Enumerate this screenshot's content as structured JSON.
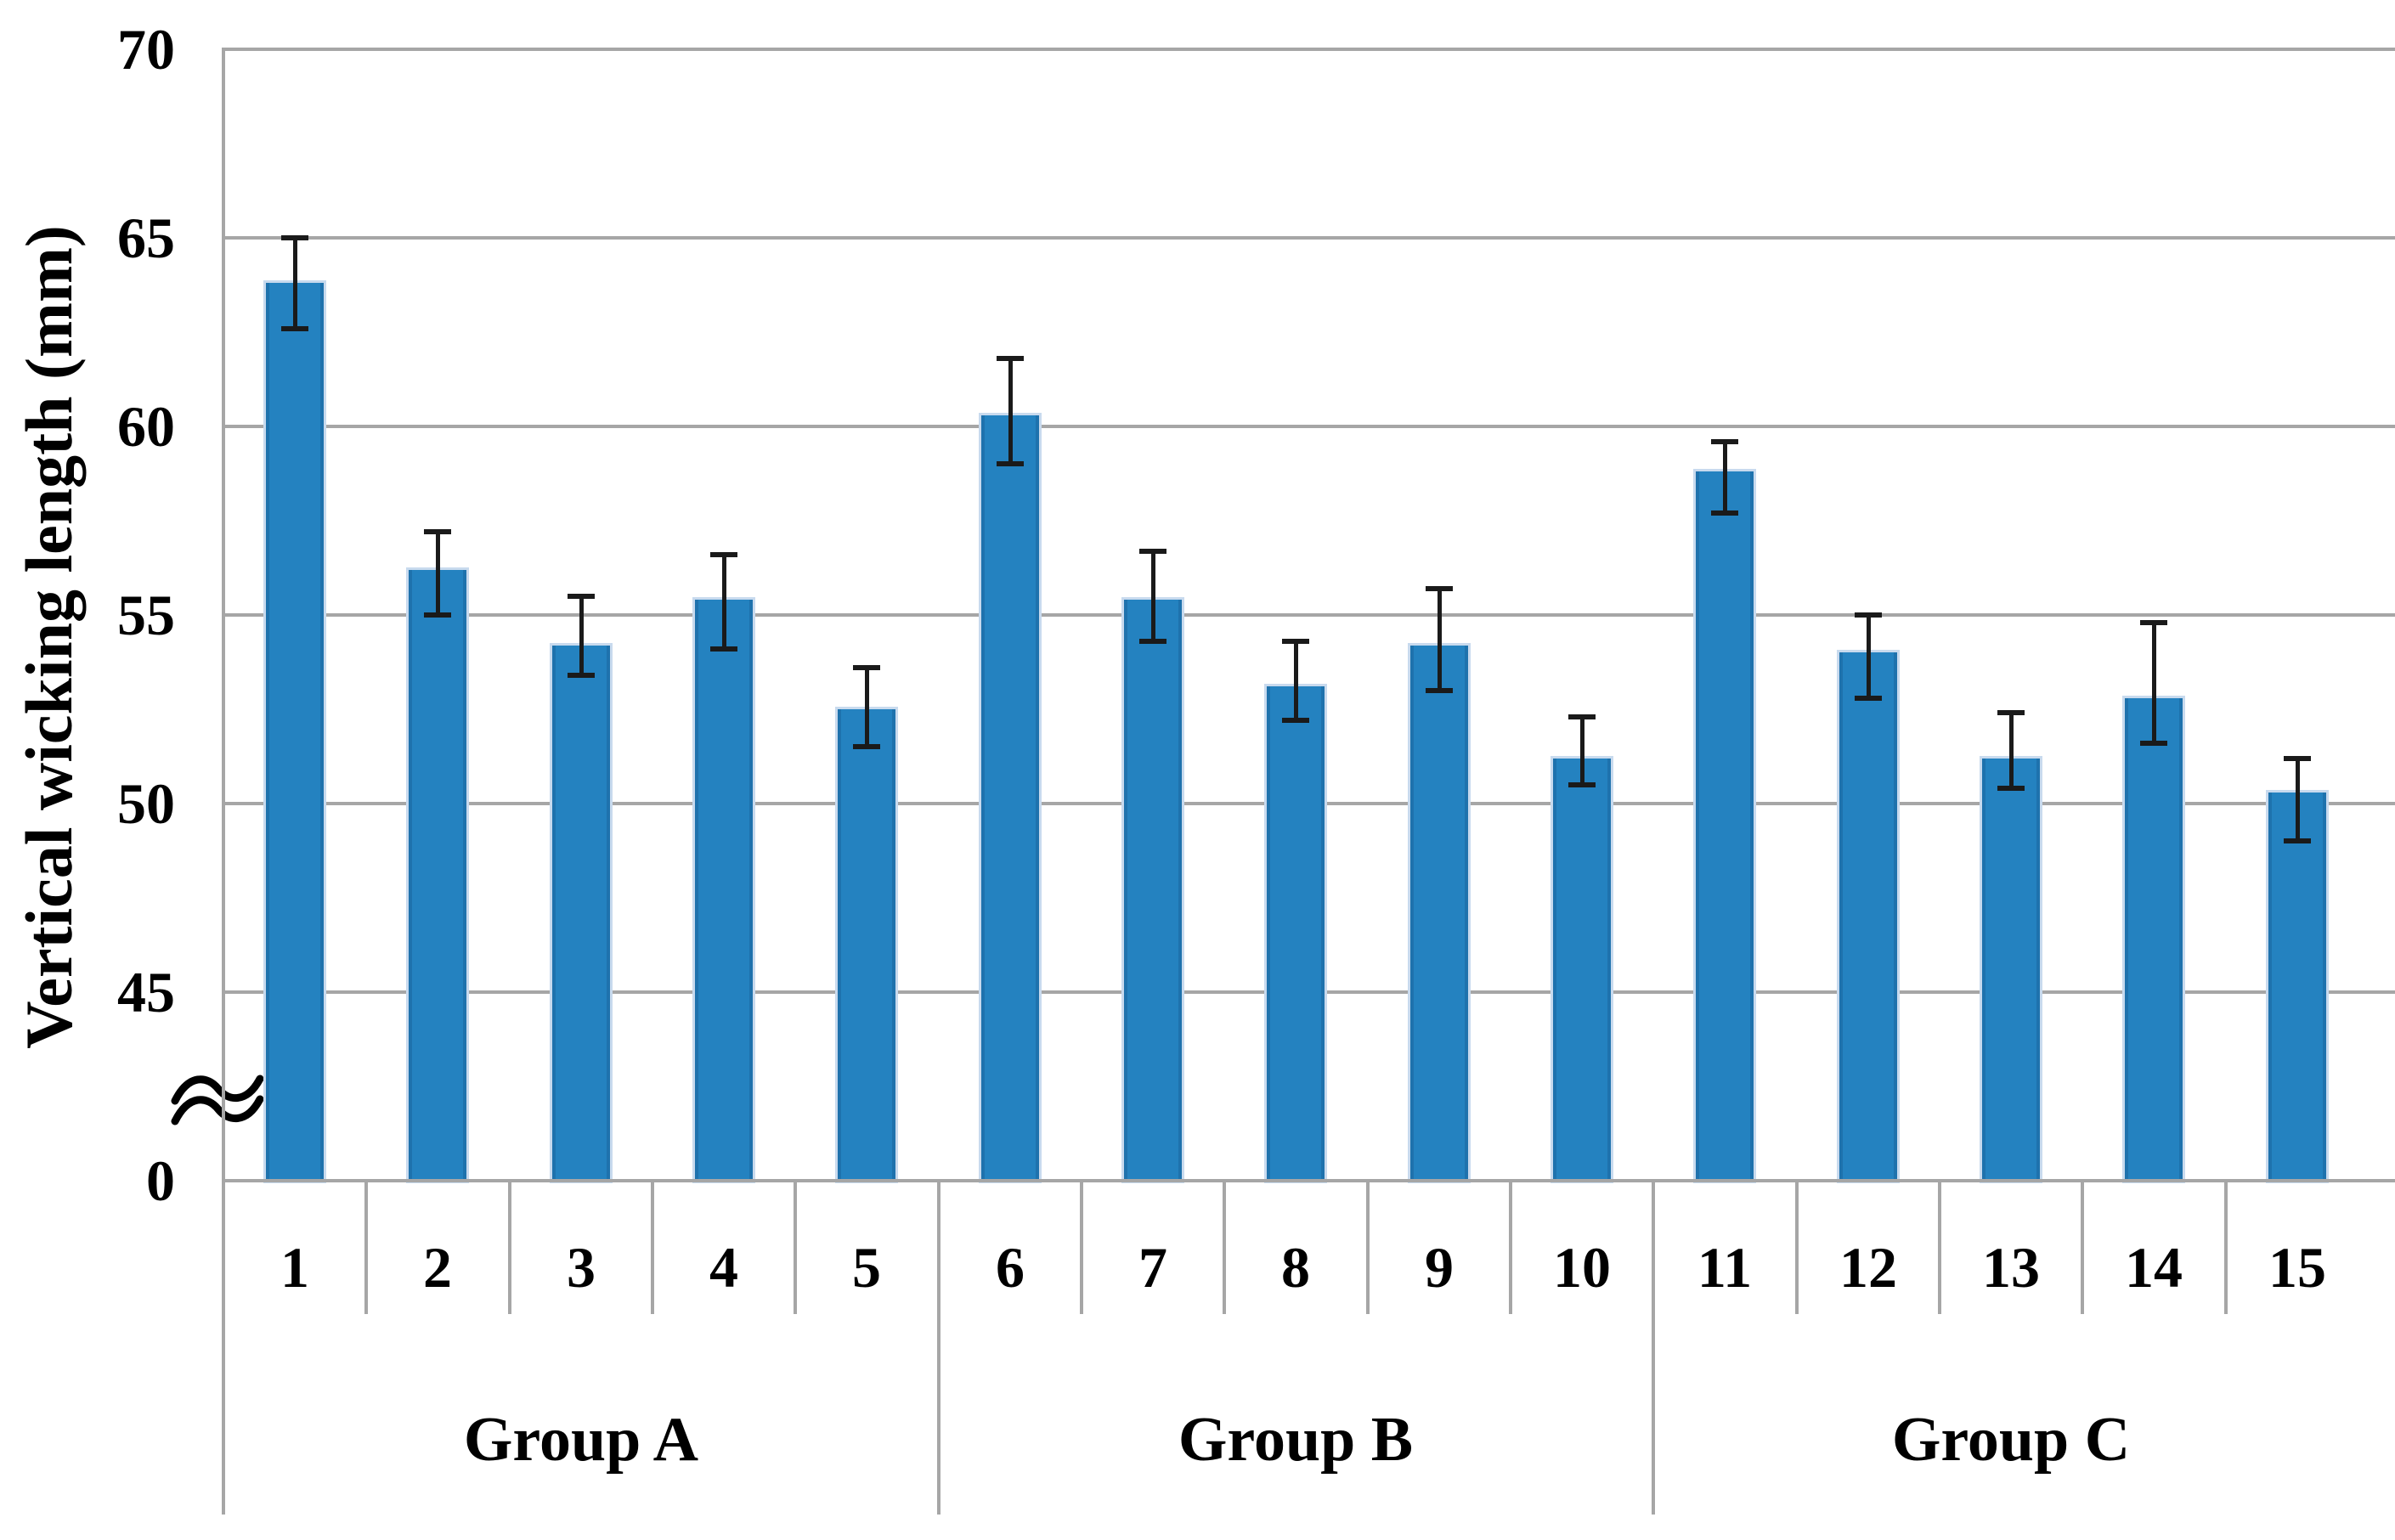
{
  "chart_data": {
    "type": "bar",
    "title": "",
    "xlabel": "",
    "ylabel": "Vertical wicking length (mm)",
    "categories": [
      "1",
      "2",
      "3",
      "4",
      "5",
      "6",
      "7",
      "8",
      "9",
      "10",
      "11",
      "12",
      "13",
      "14",
      "15"
    ],
    "values": [
      63.8,
      56.2,
      54.2,
      55.4,
      52.5,
      60.3,
      55.4,
      53.1,
      54.2,
      51.2,
      58.8,
      54.0,
      51.2,
      52.8,
      50.3
    ],
    "error_high": [
      65.0,
      57.2,
      55.5,
      56.6,
      53.6,
      61.8,
      56.7,
      54.3,
      55.7,
      52.3,
      59.6,
      55.0,
      52.4,
      54.8,
      51.2
    ],
    "error_low": [
      62.6,
      55.0,
      53.4,
      54.1,
      51.5,
      59.0,
      54.3,
      52.2,
      53.0,
      50.5,
      57.7,
      52.8,
      50.4,
      51.6,
      49.0
    ],
    "groups": [
      {
        "label": "Group A",
        "from": 1,
        "to": 5
      },
      {
        "label": "Group B",
        "from": 6,
        "to": 10
      },
      {
        "label": "Group C",
        "from": 11,
        "to": 15
      }
    ],
    "y_ticks": [
      0,
      45,
      50,
      55,
      60,
      65,
      70
    ],
    "ylim": [
      0,
      70
    ],
    "axis_break": {
      "present": true,
      "between": [
        0,
        45
      ]
    },
    "grid": true,
    "legend": false,
    "bar_color": "#2482C0",
    "bar_edge_dark": "#1E72AD",
    "bar_edge_light": "#C8DAEE",
    "gridline_color": "#A6A6A6",
    "error_bar_color": "#1a1a1a",
    "text_color": "#000000"
  }
}
